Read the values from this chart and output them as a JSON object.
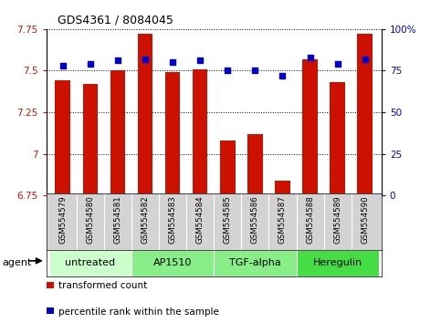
{
  "title": "GDS4361 / 8084045",
  "samples": [
    "GSM554579",
    "GSM554580",
    "GSM554581",
    "GSM554582",
    "GSM554583",
    "GSM554584",
    "GSM554585",
    "GSM554586",
    "GSM554587",
    "GSM554588",
    "GSM554589",
    "GSM554590"
  ],
  "bar_values": [
    7.44,
    7.42,
    7.5,
    7.72,
    7.49,
    7.51,
    7.08,
    7.12,
    6.84,
    7.57,
    7.43,
    7.72
  ],
  "dot_values": [
    78,
    79,
    81,
    82,
    80,
    81,
    75,
    75,
    72,
    83,
    79,
    82
  ],
  "ylim_left": [
    6.75,
    7.75
  ],
  "ylim_right": [
    0,
    100
  ],
  "yticks_left": [
    6.75,
    7.0,
    7.25,
    7.5,
    7.75
  ],
  "yticks_right": [
    0,
    25,
    50,
    75,
    100
  ],
  "ytick_labels_left": [
    "6.75",
    "7",
    "7.25",
    "7.5",
    "7.75"
  ],
  "ytick_labels_right": [
    "0",
    "25",
    "50",
    "75",
    "100%"
  ],
  "bar_color": "#cc1100",
  "dot_color": "#0000cc",
  "agent_groups": [
    {
      "label": "untreated",
      "start": 0,
      "end": 3,
      "color": "#ccffcc"
    },
    {
      "label": "AP1510",
      "start": 3,
      "end": 6,
      "color": "#88ee88"
    },
    {
      "label": "TGF-alpha",
      "start": 6,
      "end": 9,
      "color": "#88ee88"
    },
    {
      "label": "Heregulin",
      "start": 9,
      "end": 12,
      "color": "#44dd44"
    }
  ],
  "agent_label": "agent",
  "legend_items": [
    {
      "label": "transformed count",
      "color": "#cc1100"
    },
    {
      "label": "percentile rank within the sample",
      "color": "#0000cc"
    }
  ],
  "grid_color": "black",
  "tick_area_color": "#d3d3d3",
  "bg_plot": "white"
}
